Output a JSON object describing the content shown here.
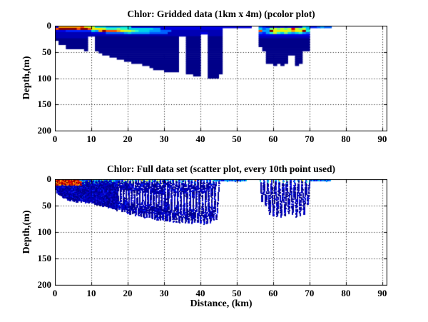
{
  "colors": {
    "background": "#ffffff",
    "axis": "#000000",
    "grid": "#000000",
    "text": "#000000"
  },
  "chart_data": [
    {
      "type": "heatmap",
      "title": "Chlor: Gridded data (1km x 4m) (pcolor plot)",
      "ylabel": "Depth,(m)",
      "xlabel": "",
      "xlim": [
        0,
        91.2
      ],
      "ylim": [
        0,
        200
      ],
      "y_inverted": true,
      "grid": "dotted",
      "xticks": [
        0,
        10,
        20,
        30,
        40,
        50,
        60,
        70,
        80,
        90
      ],
      "yticks": [
        0,
        50,
        100,
        150,
        200
      ],
      "cell_km": 1,
      "cell_m": 4,
      "palette": {
        "0": "#000089",
        "1": "#0000b4",
        "2": "#0000e1",
        "3": "#0023ff",
        "4": "#0060ff",
        "5": "#009fff",
        "6": "#00d4e8",
        "7": "#2cffc8",
        "8": "#7dff78",
        "9": "#c8ff2c",
        "a": "#f2f200",
        "b": "#ffa400",
        "c": "#ff5000",
        "d": "#e10000",
        "e": "#890000"
      },
      "rows_rle": [
        "1*2,6*b,1*c,1*a,2*9,3*6,4*5,3*6,33*2,2*.,1*4,1*3,1*2,1*1,1*2,1*1,1*2,1*1,2*2,1*1,1*2,1*6,1*5,2*3,1*4,1*5,2*4",
        "1*c,5*e,1*c,2*e,1*c,3*a,1*9,3*7,1*8,2*7,7*6,2*5,17*2,10*.,1*6,1*4,1*5,1*8,1*9,1*8,1*9,1*8,1*9,1*d,1*9,1*8,1*9,1*6,6*.",
        "3*2,7*3,1*6,1*5,1*b,1*e,3*c,1*b,1*a,2*9,1*8,1*7,3*6,3*5,3*4,14*1,10*.,1*c,2*5,1*e,4*a,1*9,1*b,2*a,1*e,1*7,6*.",
        "10*1,4*2,5*4,1*5,1*6,5*5,5*4,9*1,2*2,4*1,10*.,1*4,1*3,1*5,1*7,1*9,1*7,1*6,1*8,1*6,1*5,1*6,1*7,1*5,1*4,6*.",
        "40*1,2*.,4*1,10*.,14*2,6*.",
        "9*1,2*.,23*0,2*.,4*0,2*.,4*0,10*.,14*1,6*.",
        "9*0,2*.,23*0,2*.,4*0,2*.,4*0,10*.,14*0,6*.",
        "1*.,8*0,2*.,23*0,2*.,4*0,2*.,4*0,10*.,14*0,6*.",
        "1*.,8*0,2*.,23*0,2*.,4*0,2*.,4*0,10*.,14*0,6*.",
        "3*.,6*0,2*.,23*0,2*.,4*0,2*.,4*0,10*.,14*0,6*.",
        "3*.,6*0,2*.,23*0,2*.,4*0,2*.,4*0,11*.,13*0,6*.",
        "8*.,1*0,2*.,23*0,2*.,4*0,2*.,4*0,11*.,13*0,6*.",
        "12*.,22*0,2*.,4*0,2*.,4*0,12*.,10*0,8*.",
        "13*.,21*0,2*.,4*0,2*.,4*0,12*.,10*0,8*.",
        "15*.,19*0,2*.,4*0,2*.,4*0,12*.,6*0,2*.,2*0,8*.",
        "17*.,17*0,2*.,4*0,2*.,4*0,12*.,6*0,2*.,2*0,8*.",
        "19*.,15*0,2*.,4*0,2*.,4*0,12*.,6*0,2*.,2*0,8*.",
        "21*.,13*0,2*.,4*0,2*.,4*0,12*.,6*0,2*.,2*0,8*.",
        "24*.,10*0,2*.,4*0,2*.,4*0,14*.,1*0,1*.,1*0,3*.,1*0,9*.",
        "26*.,8*0,2*.,4*0,2*.,4*0,30*.",
        "27*.,7*0,2*.,4*0,2*.,4*0,30*.",
        "30*.,4*0,2*.,4*0,2*.,4*0,30*.",
        "36*.,4*0,2*.,4*0,30*.",
        "38*.,2*0,2*.,3*0,31*.",
        "42*.,3*0,31*."
      ]
    },
    {
      "type": "scatter",
      "title": "Chlor: Full data set (scatter plot, every 10th point used)",
      "ylabel": "Depth,(m)",
      "xlabel": "Distance, (km)",
      "xlim": [
        0,
        91.2
      ],
      "ylim": [
        0,
        200
      ],
      "y_inverted": true,
      "grid": "dotted",
      "xticks": [
        0,
        10,
        20,
        30,
        40,
        50,
        60,
        70,
        80,
        90
      ],
      "yticks": [
        0,
        50,
        100,
        150,
        200
      ],
      "marker_px": 2,
      "seed": 7,
      "bathymetry_km_depth": [
        [
          0,
          24
        ],
        [
          1,
          30
        ],
        [
          2,
          36
        ],
        [
          4,
          44
        ],
        [
          8,
          46
        ],
        [
          10,
          48
        ],
        [
          12,
          52
        ],
        [
          14,
          56
        ],
        [
          16,
          60
        ],
        [
          18,
          64
        ],
        [
          20,
          68
        ],
        [
          23,
          74
        ],
        [
          26,
          78
        ],
        [
          30,
          84
        ],
        [
          34,
          86
        ],
        [
          38,
          88
        ],
        [
          42,
          88
        ],
        [
          44,
          80
        ],
        [
          50,
          60
        ],
        [
          56,
          40
        ],
        [
          57,
          46
        ],
        [
          58,
          56
        ],
        [
          59,
          72
        ],
        [
          61,
          76
        ],
        [
          63,
          74
        ],
        [
          65,
          72
        ],
        [
          67,
          76
        ],
        [
          68,
          74
        ],
        [
          69,
          60
        ],
        [
          69.8,
          46
        ]
      ],
      "tow_segments": [
        {
          "x0": 0.25,
          "x1": 17.0,
          "period": 0.75,
          "passes": 3,
          "dstep": 1.6,
          "gap": 0.1
        },
        {
          "x0": 17.0,
          "x1": 30.0,
          "period": 1.5,
          "passes": 2,
          "dstep": 1.8,
          "gap": 0.18
        },
        {
          "x0": 30.0,
          "x1": 44.2,
          "period": 1.7,
          "passes": 2,
          "dstep": 2.0,
          "gap": 0.18
        },
        {
          "x0": 43.6,
          "x1": 52.6,
          "surface": true
        },
        {
          "x0": 56.4,
          "x1": 69.8,
          "period": 1.05,
          "passes": 1,
          "dstep": 2.2,
          "gap": 0.2
        },
        {
          "x0": 70.2,
          "x1": 75.8,
          "surface": true
        }
      ],
      "surface_band_colors": [
        [
          "#0023ff",
          0.24
        ],
        [
          "#0060ff",
          0.18
        ],
        [
          "#0000e1",
          0.12
        ],
        [
          "#009fff",
          0.12
        ],
        [
          "#00d4e8",
          0.1
        ],
        [
          "#2cffc8",
          0.07
        ],
        [
          "#7dff78",
          0.06
        ],
        [
          "#c8ff2c",
          0.05
        ],
        [
          "#f2f200",
          0.03
        ],
        [
          "#ff5000",
          0.02
        ],
        [
          "#e10000",
          0.01
        ]
      ],
      "mid_accent_colors": [
        "#009fff",
        "#00d4e8",
        "#2cffc8",
        "#7dff78",
        "#c8ff2c"
      ],
      "deep_colors": [
        "#000089",
        "#0000b4",
        "#0000d2",
        "#1414e1"
      ],
      "deep_weights": [
        0.42,
        0.3,
        0.18,
        0.1
      ],
      "surface_line_colors": [
        "#0023ff",
        "#0060ff",
        "#0000e1",
        "#009fff",
        "#00d4e8"
      ],
      "red_colors": [
        "#890000",
        "#b40000",
        "#e10000",
        "#ff5000",
        "#ffa400"
      ],
      "red_bloom": {
        "x0": 0.3,
        "x1": 7.2,
        "d0": 2,
        "d1": 11,
        "count": 230
      }
    }
  ]
}
